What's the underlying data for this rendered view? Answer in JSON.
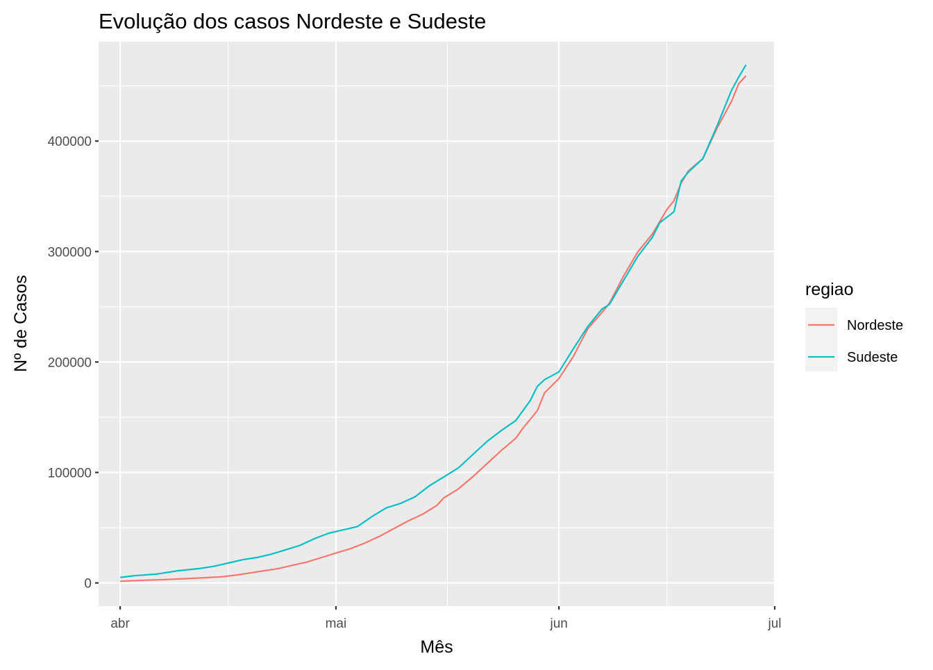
{
  "chart_data": {
    "type": "line",
    "title": "Evolução dos casos Nordeste e Sudeste",
    "xlabel": "Mês",
    "ylabel": "Nº de Casos",
    "x_axis": {
      "type": "date",
      "range": [
        "2020-03-29",
        "2020-07-01"
      ],
      "ticks": [
        {
          "date": "2020-04-01",
          "label": "abr"
        },
        {
          "date": "2020-05-01",
          "label": "mai"
        },
        {
          "date": "2020-06-01",
          "label": "jun"
        },
        {
          "date": "2020-07-01",
          "label": "jul"
        }
      ]
    },
    "y_axis": {
      "range": [
        -21000,
        490000
      ],
      "ticks": [
        0,
        100000,
        200000,
        300000,
        400000
      ],
      "tick_labels": [
        "0",
        "100000",
        "200000",
        "300000",
        "400000"
      ]
    },
    "grid": true,
    "legend": {
      "title": "regiao",
      "placement": "right"
    },
    "series": [
      {
        "name": "Nordeste",
        "color": "#F8766D",
        "points": [
          [
            "2020-04-01",
            1500
          ],
          [
            "2020-04-04",
            2300
          ],
          [
            "2020-04-07",
            3000
          ],
          [
            "2020-04-10",
            3800
          ],
          [
            "2020-04-13",
            4800
          ],
          [
            "2020-04-15",
            5500
          ],
          [
            "2020-04-17",
            7000
          ],
          [
            "2020-04-19",
            9000
          ],
          [
            "2020-04-21",
            11000
          ],
          [
            "2020-04-23",
            13000
          ],
          [
            "2020-04-25",
            16000
          ],
          [
            "2020-04-27",
            19000
          ],
          [
            "2020-04-29",
            23000
          ],
          [
            "2020-05-01",
            27000
          ],
          [
            "2020-05-03",
            31000
          ],
          [
            "2020-05-05",
            36000
          ],
          [
            "2020-05-07",
            42000
          ],
          [
            "2020-05-09",
            49000
          ],
          [
            "2020-05-11",
            56000
          ],
          [
            "2020-05-13",
            62000
          ],
          [
            "2020-05-15",
            70000
          ],
          [
            "2020-05-16",
            77000
          ],
          [
            "2020-05-18",
            85000
          ],
          [
            "2020-05-20",
            96000
          ],
          [
            "2020-05-22",
            108000
          ],
          [
            "2020-05-24",
            120000
          ],
          [
            "2020-05-26",
            131000
          ],
          [
            "2020-05-27",
            140000
          ],
          [
            "2020-05-29",
            156000
          ],
          [
            "2020-05-30",
            172000
          ],
          [
            "2020-06-01",
            185000
          ],
          [
            "2020-06-03",
            205000
          ],
          [
            "2020-06-05",
            230000
          ],
          [
            "2020-06-07",
            245000
          ],
          [
            "2020-06-08",
            253000
          ],
          [
            "2020-06-10",
            278000
          ],
          [
            "2020-06-12",
            300000
          ],
          [
            "2020-06-14",
            316000
          ],
          [
            "2020-06-16",
            338000
          ],
          [
            "2020-06-17",
            346000
          ],
          [
            "2020-06-18",
            362000
          ],
          [
            "2020-06-19",
            373000
          ],
          [
            "2020-06-21",
            384000
          ],
          [
            "2020-06-23",
            412000
          ],
          [
            "2020-06-25",
            436000
          ],
          [
            "2020-06-26",
            452000
          ],
          [
            "2020-06-27",
            459000
          ]
        ]
      },
      {
        "name": "Sudeste",
        "color": "#00BFC4",
        "points": [
          [
            "2020-04-01",
            5000
          ],
          [
            "2020-04-03",
            6500
          ],
          [
            "2020-04-06",
            8000
          ],
          [
            "2020-04-09",
            11000
          ],
          [
            "2020-04-12",
            13000
          ],
          [
            "2020-04-14",
            15000
          ],
          [
            "2020-04-16",
            18000
          ],
          [
            "2020-04-18",
            21000
          ],
          [
            "2020-04-20",
            23000
          ],
          [
            "2020-04-22",
            26000
          ],
          [
            "2020-04-24",
            30000
          ],
          [
            "2020-04-26",
            34000
          ],
          [
            "2020-04-28",
            40000
          ],
          [
            "2020-04-30",
            45000
          ],
          [
            "2020-05-02",
            48000
          ],
          [
            "2020-05-04",
            51000
          ],
          [
            "2020-05-06",
            60000
          ],
          [
            "2020-05-08",
            68000
          ],
          [
            "2020-05-10",
            72000
          ],
          [
            "2020-05-12",
            78000
          ],
          [
            "2020-05-14",
            88000
          ],
          [
            "2020-05-16",
            96000
          ],
          [
            "2020-05-18",
            104000
          ],
          [
            "2020-05-20",
            116000
          ],
          [
            "2020-05-22",
            128000
          ],
          [
            "2020-05-24",
            138000
          ],
          [
            "2020-05-26",
            147000
          ],
          [
            "2020-05-28",
            165000
          ],
          [
            "2020-05-29",
            178000
          ],
          [
            "2020-05-30",
            184000
          ],
          [
            "2020-06-01",
            191000
          ],
          [
            "2020-06-03",
            212000
          ],
          [
            "2020-06-05",
            232000
          ],
          [
            "2020-06-07",
            248000
          ],
          [
            "2020-06-08",
            252000
          ],
          [
            "2020-06-10",
            274000
          ],
          [
            "2020-06-12",
            296000
          ],
          [
            "2020-06-14",
            313000
          ],
          [
            "2020-06-15",
            326000
          ],
          [
            "2020-06-17",
            336000
          ],
          [
            "2020-06-18",
            364000
          ],
          [
            "2020-06-19",
            372000
          ],
          [
            "2020-06-21",
            384000
          ],
          [
            "2020-06-23",
            414000
          ],
          [
            "2020-06-25",
            446000
          ],
          [
            "2020-06-26",
            458000
          ],
          [
            "2020-06-27",
            469000
          ]
        ]
      }
    ]
  }
}
